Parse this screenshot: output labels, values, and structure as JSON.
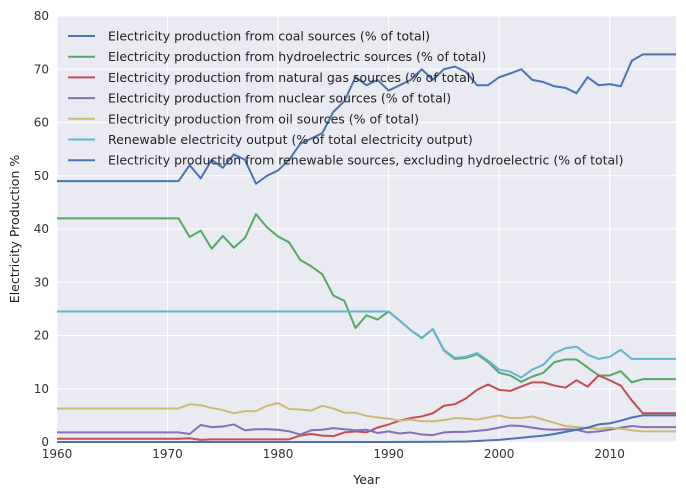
{
  "chart_data": {
    "type": "line",
    "title": "",
    "xlabel": "Year",
    "ylabel": "Electricity Production %",
    "xlim": [
      1960,
      2016
    ],
    "ylim": [
      0,
      80
    ],
    "xticks": [
      1960,
      1970,
      1980,
      1990,
      2000,
      2010
    ],
    "yticks": [
      0,
      10,
      20,
      30,
      40,
      50,
      60,
      70,
      80
    ],
    "grid": true,
    "legend_position": "top-left",
    "series": [
      {
        "name": "Electricity production from coal sources (% of total)",
        "color": "#4c72b0",
        "x": [
          1960,
          1961,
          1962,
          1963,
          1964,
          1965,
          1966,
          1967,
          1968,
          1969,
          1970,
          1971,
          1972,
          1973,
          1974,
          1975,
          1976,
          1977,
          1978,
          1979,
          1980,
          1981,
          1982,
          1983,
          1984,
          1985,
          1986,
          1987,
          1988,
          1989,
          1990,
          1991,
          1992,
          1993,
          1994,
          1995,
          1996,
          1997,
          1998,
          1999,
          2000,
          2001,
          2002,
          2003,
          2004,
          2005,
          2006,
          2007,
          2008,
          2009,
          2010,
          2011,
          2012,
          2013,
          2014,
          2015,
          2016
        ],
        "y": [
          49,
          49,
          49,
          49,
          49,
          49,
          49,
          49,
          49,
          49,
          49,
          49,
          52,
          49.5,
          53,
          51.5,
          54,
          53,
          48.5,
          50,
          51,
          53,
          56,
          57,
          58,
          62,
          64,
          68.5,
          67,
          68,
          66,
          67,
          68,
          70,
          68,
          70,
          70.5,
          69.5,
          67,
          67,
          68.5,
          69.2,
          70,
          68,
          67.6,
          66.8,
          66.5,
          65.5,
          68.5,
          67,
          67.2,
          66.8,
          71.6,
          72.8,
          72.8,
          72.8,
          72.8
        ]
      },
      {
        "name": "Electricity production from hydroelectric sources (% of total)",
        "color": "#55a868",
        "x": [
          1960,
          1961,
          1962,
          1963,
          1964,
          1965,
          1966,
          1967,
          1968,
          1969,
          1970,
          1971,
          1972,
          1973,
          1974,
          1975,
          1976,
          1977,
          1978,
          1979,
          1980,
          1981,
          1982,
          1983,
          1984,
          1985,
          1986,
          1987,
          1988,
          1989,
          1990,
          1991,
          1992,
          1993,
          1994,
          1995,
          1996,
          1997,
          1998,
          1999,
          2000,
          2001,
          2002,
          2003,
          2004,
          2005,
          2006,
          2007,
          2008,
          2009,
          2010,
          2011,
          2012,
          2013,
          2014,
          2015,
          2016
        ],
        "y": [
          42,
          42,
          42,
          42,
          42,
          42,
          42,
          42,
          42,
          42,
          42,
          42,
          38.5,
          39.7,
          36.3,
          38.7,
          36.5,
          38.3,
          42.8,
          40.3,
          38.6,
          37.5,
          34.2,
          33,
          31.5,
          27.5,
          26.5,
          21.4,
          23.8,
          23,
          24.5,
          22.8,
          21,
          19.5,
          21.2,
          17.2,
          15.6,
          15.8,
          16.5,
          15,
          13,
          12.5,
          11.3,
          12.3,
          13,
          15,
          15.5,
          15.5,
          14,
          12.5,
          12.5,
          13.3,
          11.2,
          11.8,
          11.8,
          11.8,
          11.8
        ]
      },
      {
        "name": "Electricity production from natural gas sources (% of total)",
        "color": "#c44e52",
        "x": [
          1960,
          1965,
          1970,
          1971,
          1972,
          1973,
          1974,
          1975,
          1976,
          1977,
          1978,
          1979,
          1980,
          1981,
          1982,
          1983,
          1984,
          1985,
          1986,
          1987,
          1988,
          1989,
          1990,
          1991,
          1992,
          1993,
          1994,
          1995,
          1996,
          1997,
          1998,
          1999,
          2000,
          2001,
          2002,
          2003,
          2004,
          2005,
          2006,
          2007,
          2008,
          2009,
          2010,
          2011,
          2012,
          2013,
          2014,
          2015,
          2016
        ],
        "y": [
          0.6,
          0.6,
          0.6,
          0.6,
          0.7,
          0.4,
          0.5,
          0.5,
          0.5,
          0.5,
          0.5,
          0.5,
          0.5,
          0.5,
          1.2,
          1.5,
          1.2,
          1.1,
          1.8,
          2.0,
          1.8,
          2.7,
          3.3,
          4.0,
          4.5,
          4.8,
          5.4,
          6.8,
          7.1,
          8.2,
          9.8,
          10.8,
          9.8,
          9.6,
          10.4,
          11.2,
          11.2,
          10.6,
          10.2,
          11.6,
          10.4,
          12.5,
          11.6,
          10.6,
          7.8,
          5.4,
          5.4,
          5.4,
          5.4
        ]
      },
      {
        "name": "Electricity production from nuclear sources (% of total)",
        "color": "#8172b2",
        "x": [
          1960,
          1965,
          1970,
          1971,
          1972,
          1973,
          1974,
          1975,
          1976,
          1977,
          1978,
          1979,
          1980,
          1981,
          1982,
          1983,
          1984,
          1985,
          1986,
          1987,
          1988,
          1989,
          1990,
          1991,
          1992,
          1993,
          1994,
          1995,
          1996,
          1997,
          1998,
          1999,
          2000,
          2001,
          2002,
          2003,
          2004,
          2005,
          2006,
          2007,
          2008,
          2009,
          2010,
          2011,
          2012,
          2013,
          2014,
          2015,
          2016
        ],
        "y": [
          1.8,
          1.8,
          1.8,
          1.8,
          1.5,
          3.2,
          2.8,
          2.9,
          3.3,
          2.2,
          2.4,
          2.4,
          2.3,
          2.0,
          1.4,
          2.2,
          2.3,
          2.6,
          2.4,
          2.2,
          2.3,
          1.7,
          2.0,
          1.6,
          1.8,
          1.4,
          1.3,
          1.8,
          1.9,
          1.9,
          2.1,
          2.3,
          2.7,
          3.1,
          3.0,
          2.7,
          2.4,
          2.3,
          2.4,
          2.3,
          1.8,
          2.0,
          2.3,
          2.7,
          3.0,
          2.8,
          2.8,
          2.8,
          2.8
        ]
      },
      {
        "name": "Electricity production from oil sources (% of total)",
        "color": "#ccb974",
        "x": [
          1960,
          1965,
          1970,
          1971,
          1972,
          1973,
          1974,
          1975,
          1976,
          1977,
          1978,
          1979,
          1980,
          1981,
          1982,
          1983,
          1984,
          1985,
          1986,
          1987,
          1988,
          1989,
          1990,
          1991,
          1992,
          1993,
          1994,
          1995,
          1996,
          1997,
          1998,
          1999,
          2000,
          2001,
          2002,
          2003,
          2004,
          2005,
          2006,
          2007,
          2008,
          2009,
          2010,
          2011,
          2012,
          2013,
          2014,
          2015,
          2016
        ],
        "y": [
          6.3,
          6.3,
          6.3,
          6.3,
          7.1,
          6.9,
          6.4,
          6.0,
          5.4,
          5.8,
          5.8,
          6.8,
          7.3,
          6.2,
          6.1,
          5.9,
          6.8,
          6.3,
          5.5,
          5.5,
          4.9,
          4.6,
          4.4,
          4.0,
          4.2,
          3.9,
          3.9,
          4.1,
          4.5,
          4.4,
          4.2,
          4.6,
          5.0,
          4.5,
          4.5,
          4.8,
          4.2,
          3.6,
          3.0,
          2.8,
          2.6,
          2.5,
          2.7,
          2.5,
          2.2,
          2.0,
          2.0,
          2.0,
          2.0
        ]
      },
      {
        "name": "Renewable electricity output (% of total electricity output)",
        "color": "#64b5cd",
        "x": [
          1960,
          1965,
          1970,
          1975,
          1980,
          1985,
          1989,
          1990,
          1991,
          1992,
          1993,
          1994,
          1995,
          1996,
          1997,
          1998,
          1999,
          2000,
          2001,
          2002,
          2003,
          2004,
          2005,
          2006,
          2007,
          2008,
          2009,
          2010,
          2011,
          2012,
          2013,
          2014,
          2015,
          2016
        ],
        "y": [
          24.5,
          24.5,
          24.5,
          24.5,
          24.5,
          24.5,
          24.5,
          24.5,
          22.8,
          21.0,
          19.6,
          21.2,
          17.3,
          15.8,
          16.0,
          16.7,
          15.3,
          13.6,
          13.2,
          12.1,
          13.6,
          14.5,
          16.7,
          17.6,
          17.9,
          16.4,
          15.6,
          16.0,
          17.3,
          15.6,
          15.6,
          15.6,
          15.6,
          15.6
        ]
      },
      {
        "name": "Electricity production from renewable sources, excluding hydroelectric (% of total)",
        "color": "#4c72b0",
        "x": [
          1960,
          1970,
          1980,
          1990,
          1995,
          1997,
          1998,
          1999,
          2000,
          2001,
          2002,
          2003,
          2004,
          2005,
          2006,
          2007,
          2008,
          2009,
          2010,
          2011,
          2012,
          2013,
          2014,
          2015,
          2016
        ],
        "y": [
          0,
          0,
          0,
          0,
          0.05,
          0.1,
          0.2,
          0.3,
          0.4,
          0.6,
          0.8,
          1.0,
          1.2,
          1.5,
          1.9,
          2.3,
          2.7,
          3.3,
          3.5,
          4.0,
          4.6,
          5.0,
          5.0,
          5.0,
          5.0
        ]
      }
    ]
  }
}
